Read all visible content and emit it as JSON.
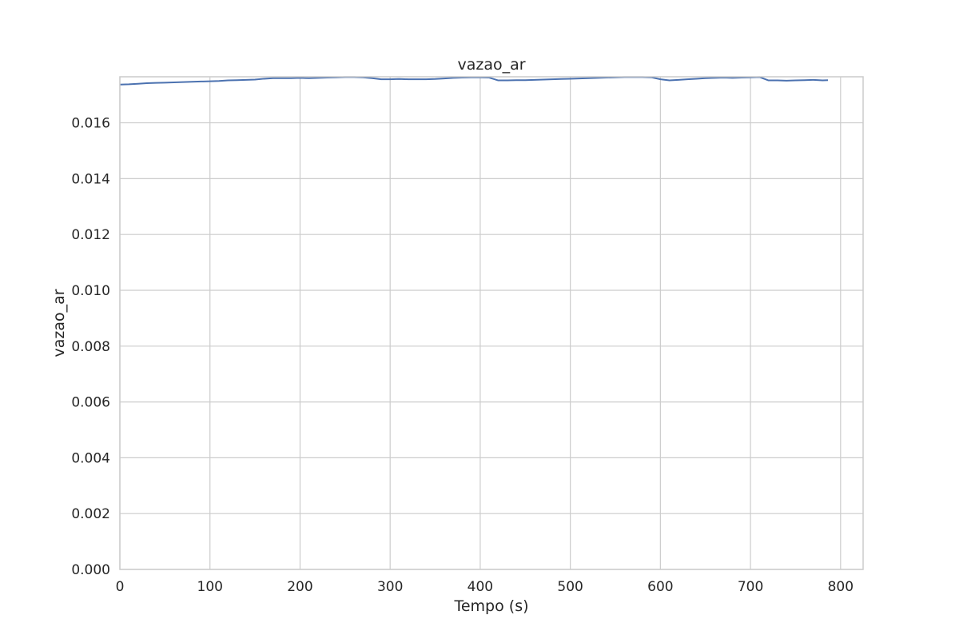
{
  "chart_data": {
    "type": "line",
    "title": "vazao_ar",
    "xlabel": "Tempo (s)",
    "ylabel": "vazao_ar",
    "xlim": [
      0,
      825
    ],
    "ylim": [
      0,
      0.01765
    ],
    "xticks": [
      0,
      100,
      200,
      300,
      400,
      500,
      600,
      700,
      800
    ],
    "xtick_labels": [
      "0",
      "100",
      "200",
      "300",
      "400",
      "500",
      "600",
      "700",
      "800"
    ],
    "yticks": [
      0,
      0.002,
      0.004,
      0.006,
      0.008,
      0.01,
      0.012,
      0.014,
      0.016
    ],
    "ytick_labels": [
      "0.000",
      "0.002",
      "0.004",
      "0.006",
      "0.008",
      "0.010",
      "0.012",
      "0.014",
      "0.016"
    ],
    "grid": true,
    "colors": {
      "line": "#4c72b0",
      "grid": "#cccccc",
      "frame": "#cccccc",
      "text": "#262626"
    },
    "series": [
      {
        "x": [
          0,
          10,
          20,
          30,
          40,
          50,
          60,
          70,
          80,
          90,
          100,
          110,
          120,
          130,
          140,
          150,
          160,
          170,
          180,
          190,
          200,
          210,
          220,
          230,
          240,
          250,
          260,
          270,
          280,
          290,
          300,
          310,
          320,
          330,
          340,
          350,
          360,
          370,
          380,
          390,
          400,
          410,
          420,
          430,
          440,
          450,
          460,
          470,
          480,
          490,
          500,
          510,
          520,
          530,
          540,
          550,
          560,
          570,
          580,
          590,
          600,
          610,
          620,
          630,
          640,
          650,
          660,
          670,
          680,
          690,
          700,
          710,
          720,
          730,
          740,
          750,
          760,
          770,
          780,
          786
        ],
        "y": [
          0.01737,
          0.01738,
          0.0174,
          0.01742,
          0.01743,
          0.01744,
          0.01745,
          0.01746,
          0.01747,
          0.01748,
          0.01749,
          0.0175,
          0.01752,
          0.01753,
          0.01754,
          0.01755,
          0.01758,
          0.0176,
          0.0176,
          0.0176,
          0.01761,
          0.0176,
          0.01761,
          0.01762,
          0.01763,
          0.01764,
          0.01764,
          0.01763,
          0.0176,
          0.01756,
          0.01756,
          0.01757,
          0.01756,
          0.01756,
          0.01756,
          0.01757,
          0.01759,
          0.01761,
          0.01762,
          0.01763,
          0.01763,
          0.01762,
          0.01752,
          0.01752,
          0.01753,
          0.01753,
          0.01754,
          0.01755,
          0.01756,
          0.01757,
          0.01758,
          0.01759,
          0.0176,
          0.01761,
          0.01762,
          0.01763,
          0.01764,
          0.01764,
          0.01764,
          0.01763,
          0.01756,
          0.01752,
          0.01754,
          0.01756,
          0.01758,
          0.0176,
          0.01761,
          0.01762,
          0.01761,
          0.01762,
          0.01763,
          0.01764,
          0.01752,
          0.01752,
          0.01751,
          0.01752,
          0.01753,
          0.01754,
          0.01752,
          0.01753
        ]
      }
    ]
  }
}
